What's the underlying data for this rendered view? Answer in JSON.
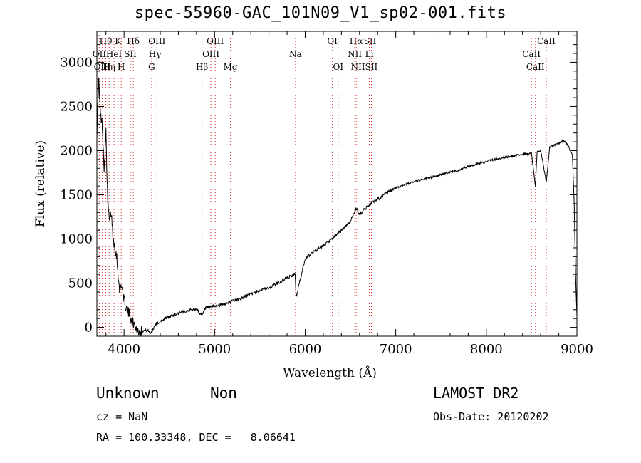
{
  "chart_data": {
    "type": "line",
    "title": "spec-55960-GAC_101N09_V1_sp02-001.fits",
    "xlabel": "Wavelength (Å)",
    "ylabel": "Flux (relative)",
    "xlim": [
      3700,
      9000
    ],
    "ylim": [
      -100,
      3350
    ],
    "xticks": [
      4000,
      5000,
      6000,
      7000,
      8000,
      9000
    ],
    "yticks": [
      0,
      500,
      1000,
      1500,
      2000,
      2500,
      3000
    ],
    "line_color": "#000000",
    "marker_color": "#d03030",
    "series": [
      {
        "x": [
          3700,
          3720,
          3740,
          3760,
          3780,
          3800,
          3820,
          3840,
          3860,
          3880,
          3900,
          3920,
          3950,
          3970,
          4000,
          4030,
          4060,
          4100,
          4130,
          4160,
          4200,
          4250,
          4300,
          4350,
          4400,
          4450,
          4500,
          4600,
          4700,
          4800,
          4861,
          4900,
          5000,
          5100,
          5200,
          5300,
          5400,
          5500,
          5600,
          5700,
          5800,
          5890,
          5900,
          6000,
          6100,
          6200,
          6300,
          6400,
          6500,
          6563,
          6600,
          6700,
          6800,
          6900,
          7000,
          7200,
          7400,
          7600,
          7700,
          7800,
          8000,
          8200,
          8400,
          8498,
          8542,
          8560,
          8600,
          8662,
          8700,
          8800,
          8850,
          8900,
          8950,
          8970,
          8985,
          9000
        ],
        "y": [
          2200,
          2800,
          2400,
          2300,
          1800,
          2200,
          1400,
          1200,
          1300,
          1000,
          900,
          800,
          400,
          500,
          300,
          200,
          150,
          50,
          0,
          -50,
          -40,
          -30,
          -60,
          40,
          60,
          100,
          120,
          160,
          190,
          210,
          130,
          220,
          240,
          260,
          300,
          330,
          380,
          420,
          450,
          500,
          560,
          600,
          340,
          780,
          860,
          920,
          1000,
          1100,
          1200,
          1350,
          1280,
          1380,
          1450,
          1520,
          1580,
          1650,
          1700,
          1760,
          1780,
          1820,
          1880,
          1920,
          1960,
          1970,
          1600,
          1980,
          2000,
          1650,
          2040,
          2080,
          2120,
          2060,
          1950,
          1400,
          600,
          130
        ]
      }
    ],
    "line_markers": [
      {
        "label": "Hθ",
        "x": 3798,
        "row": 1
      },
      {
        "label": "OII",
        "x": 3727,
        "row": 2
      },
      {
        "label": "OIII",
        "x": 3760,
        "row": 3
      },
      {
        "label": "K",
        "x": 3934,
        "row": 1
      },
      {
        "label": "HeI",
        "x": 3889,
        "row": 2
      },
      {
        "label": "Hη",
        "x": 3835,
        "row": 3
      },
      {
        "label": "SII",
        "x": 4070,
        "row": 2
      },
      {
        "label": "H",
        "x": 3969,
        "row": 3
      },
      {
        "label": "Hδ",
        "x": 4102,
        "row": 1
      },
      {
        "label": "OIII",
        "x": 4363,
        "row": 1
      },
      {
        "label": "Hγ",
        "x": 4341,
        "row": 2
      },
      {
        "label": "G",
        "x": 4305,
        "row": 3
      },
      {
        "label": "OIII",
        "x": 5007,
        "row": 1
      },
      {
        "label": "OIII",
        "x": 4959,
        "row": 2
      },
      {
        "label": "Hβ",
        "x": 4861,
        "row": 3
      },
      {
        "label": "Mg",
        "x": 5175,
        "row": 3
      },
      {
        "label": "Na",
        "x": 5893,
        "row": 2
      },
      {
        "label": "OI",
        "x": 6300,
        "row": 1
      },
      {
        "label": "OI",
        "x": 6364,
        "row": 3
      },
      {
        "label": "Hα",
        "x": 6563,
        "row": 1
      },
      {
        "label": "SII",
        "x": 6716,
        "row": 1
      },
      {
        "label": "NII",
        "x": 6548,
        "row": 2
      },
      {
        "label": "Li",
        "x": 6708,
        "row": 2
      },
      {
        "label": "NII",
        "x": 6583,
        "row": 3
      },
      {
        "label": "SII",
        "x": 6731,
        "row": 3
      },
      {
        "label": "CaII",
        "x": 8662,
        "row": 1
      },
      {
        "label": "CaII",
        "x": 8498,
        "row": 2
      },
      {
        "label": "CaII",
        "x": 8542,
        "row": 3
      }
    ]
  },
  "info": {
    "title": "spec-55960-GAC_101N09_V1_sp02-001.fits",
    "obj_class": "Unknown",
    "obj_subclass": "Non",
    "survey": "LAMOST DR2",
    "cz": "cz = NaN",
    "obs_date": "Obs-Date: 20120202",
    "radec": "RA = 100.33348, DEC =   8.06641"
  }
}
